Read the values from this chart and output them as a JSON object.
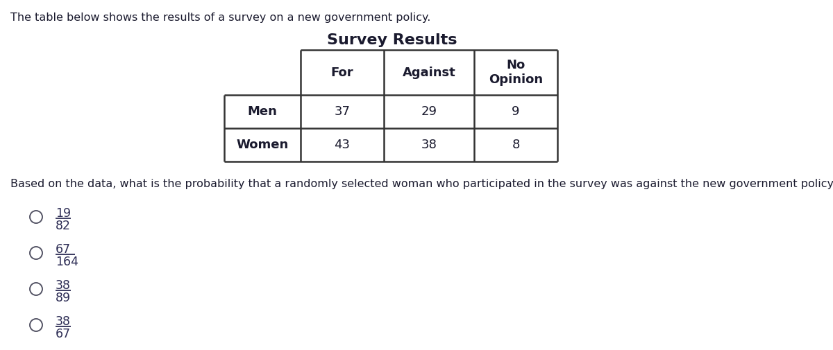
{
  "intro_text": "The table below shows the results of a survey on a new government policy.",
  "table_title": "Survey Results",
  "col_headers": [
    "For",
    "Against",
    "No\nOpinion"
  ],
  "row_headers": [
    "Men",
    "Women"
  ],
  "table_data": [
    [
      37,
      29,
      9
    ],
    [
      43,
      38,
      8
    ]
  ],
  "question_text": "Based on the data, what is the probability that a randomly selected woman who participated in the survey was against the new government policy?",
  "options": [
    {
      "num": "19",
      "den": "82"
    },
    {
      "num": "67",
      "den": "164"
    },
    {
      "num": "38",
      "den": "89"
    },
    {
      "num": "38",
      "den": "67"
    }
  ],
  "bg_color": "#ffffff",
  "text_color": "#1a1a2e",
  "table_border_color": "#333333",
  "option_text_color": "#2c2c54"
}
